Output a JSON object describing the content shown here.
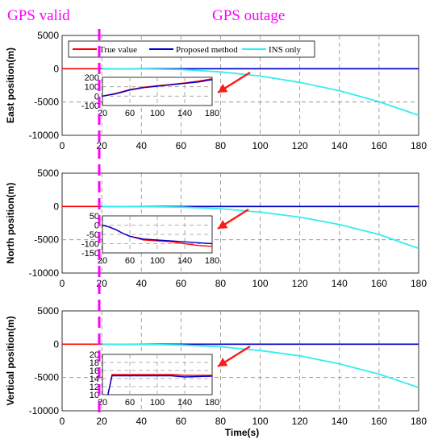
{
  "header": {
    "left_label": "GPS valid",
    "right_label": "GPS outage"
  },
  "x_axis_label": "Time(s)",
  "legend": [
    "True value",
    "Proposed method",
    "INS only"
  ],
  "colors": {
    "true": "#ff0000",
    "proposed": "#0000cd",
    "ins": "#33eeee",
    "divider": "#ff00ff",
    "arrow": "#ff1a1a"
  },
  "chart_data": [
    {
      "type": "line",
      "ylabel": "East position(m)",
      "xlim": [
        0,
        180
      ],
      "ylim": [
        -10000,
        5000
      ],
      "xticks": [
        0,
        20,
        40,
        60,
        80,
        100,
        120,
        140,
        160,
        180
      ],
      "yticks": [
        -10000,
        -5000,
        0,
        5000
      ],
      "series": [
        {
          "name": "True value",
          "x": [
            0,
            180
          ],
          "y": [
            0,
            0
          ]
        },
        {
          "name": "Proposed method",
          "x": [
            20,
            180
          ],
          "y": [
            0,
            0
          ]
        },
        {
          "name": "INS only",
          "x": [
            20,
            40,
            60,
            80,
            100,
            120,
            140,
            160,
            180
          ],
          "y": [
            0,
            -20,
            -130,
            -480,
            -1100,
            -2050,
            -3300,
            -4950,
            -7000
          ]
        }
      ],
      "inset": {
        "xlim": [
          20,
          180
        ],
        "ylim": [
          -100,
          200
        ],
        "xticks": [
          20,
          60,
          100,
          140,
          180
        ],
        "yticks": [
          -100,
          0,
          100,
          200
        ],
        "series": [
          {
            "name": "True value",
            "x": [
              20,
              40,
              60,
              80,
              100,
              120,
              140,
              160,
              180
            ],
            "y": [
              0,
              30,
              70,
              95,
              110,
              125,
              140,
              160,
              185
            ]
          },
          {
            "name": "Proposed method",
            "x": [
              20,
              40,
              60,
              80,
              100,
              120,
              140,
              160,
              180
            ],
            "y": [
              0,
              25,
              65,
              90,
              105,
              120,
              135,
              150,
              175
            ]
          }
        ]
      }
    },
    {
      "type": "line",
      "ylabel": "North position(m)",
      "xlim": [
        0,
        180
      ],
      "ylim": [
        -10000,
        5000
      ],
      "xticks": [
        0,
        20,
        40,
        60,
        80,
        100,
        120,
        140,
        160,
        180
      ],
      "yticks": [
        -10000,
        -5000,
        0,
        5000
      ],
      "series": [
        {
          "name": "True value",
          "x": [
            0,
            180
          ],
          "y": [
            0,
            0
          ]
        },
        {
          "name": "Proposed method",
          "x": [
            20,
            180
          ],
          "y": [
            0,
            0
          ]
        },
        {
          "name": "INS only",
          "x": [
            20,
            40,
            60,
            80,
            100,
            120,
            140,
            160,
            180
          ],
          "y": [
            0,
            -20,
            -100,
            -330,
            -850,
            -1600,
            -2700,
            -4200,
            -6300
          ]
        }
      ],
      "inset": {
        "xlim": [
          20,
          180
        ],
        "ylim": [
          -150,
          50
        ],
        "xticks": [
          20,
          60,
          100,
          140,
          180
        ],
        "yticks": [
          -150,
          -100,
          -50,
          0,
          50
        ],
        "series": [
          {
            "name": "True value",
            "x": [
              20,
              30,
              40,
              50,
              60,
              80,
              100,
              120,
              140,
              160,
              180
            ],
            "y": [
              0,
              -10,
              -25,
              -45,
              -60,
              -80,
              -85,
              -90,
              -100,
              -110,
              -115
            ]
          },
          {
            "name": "Proposed method",
            "x": [
              20,
              30,
              40,
              50,
              60,
              80,
              100,
              120,
              140,
              160,
              180
            ],
            "y": [
              0,
              -10,
              -25,
              -45,
              -60,
              -75,
              -80,
              -85,
              -90,
              -95,
              -100
            ]
          }
        ]
      }
    },
    {
      "type": "line",
      "ylabel": "Vertical position(m)",
      "xlim": [
        0,
        180
      ],
      "ylim": [
        -10000,
        5000
      ],
      "xticks": [
        0,
        20,
        40,
        60,
        80,
        100,
        120,
        140,
        160,
        180
      ],
      "yticks": [
        -10000,
        -5000,
        0,
        5000
      ],
      "series": [
        {
          "name": "True value",
          "x": [
            0,
            180
          ],
          "y": [
            0,
            0
          ]
        },
        {
          "name": "Proposed method",
          "x": [
            20,
            180
          ],
          "y": [
            0,
            0
          ]
        },
        {
          "name": "INS only",
          "x": [
            20,
            40,
            60,
            80,
            100,
            120,
            140,
            160,
            180
          ],
          "y": [
            0,
            -20,
            -120,
            -380,
            -950,
            -1750,
            -2950,
            -4500,
            -6500
          ]
        }
      ],
      "inset": {
        "xlim": [
          20,
          180
        ],
        "ylim": [
          10,
          20
        ],
        "xticks": [
          20,
          60,
          100,
          140,
          180
        ],
        "yticks": [
          10,
          12,
          14,
          16,
          18,
          20
        ],
        "series": [
          {
            "name": "True value",
            "x": [
              28,
              34,
              60,
              100,
              120,
              140,
              160,
              180
            ],
            "y": [
              10,
              15,
              15,
              15,
              15,
              14.8,
              14.8,
              14.8
            ]
          },
          {
            "name": "Proposed method",
            "x": [
              28,
              34,
              60,
              100,
              120,
              140,
              160,
              180
            ],
            "y": [
              10,
              14.7,
              14.7,
              14.7,
              14.7,
              14.4,
              14.5,
              14.6
            ]
          }
        ]
      }
    }
  ]
}
